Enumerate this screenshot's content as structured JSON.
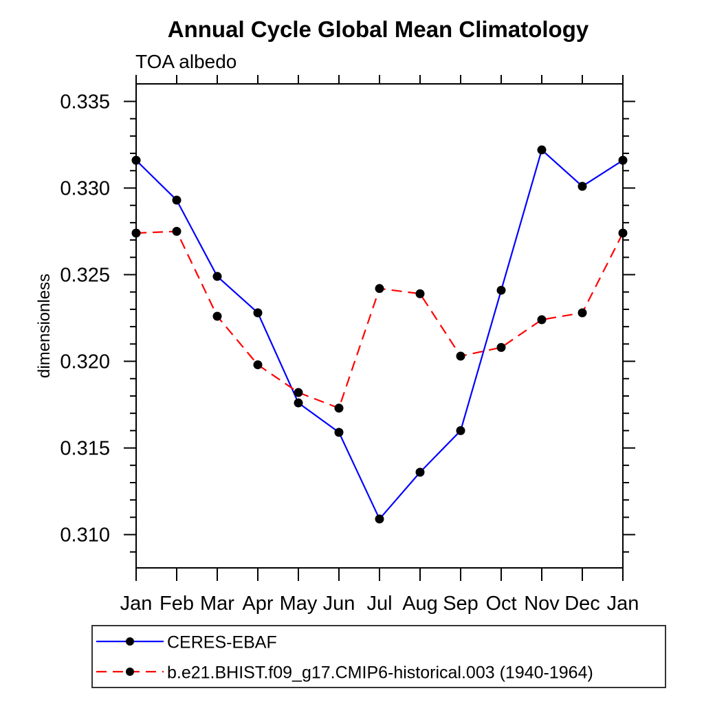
{
  "title": "Annual Cycle Global Mean Climatology",
  "subtitle": "TOA albedo",
  "ylabel": "dimensionless",
  "chart_data": {
    "type": "line",
    "categories": [
      "Jan",
      "Feb",
      "Mar",
      "Apr",
      "May",
      "Jun",
      "Jul",
      "Aug",
      "Sep",
      "Oct",
      "Nov",
      "Dec",
      "Jan"
    ],
    "series": [
      {
        "name": "CERES-EBAF",
        "color": "#0000ff",
        "line_style": "solid",
        "marker": "circle",
        "marker_color": "#000000",
        "values": [
          0.3316,
          0.3293,
          0.3249,
          0.3228,
          0.3176,
          0.3159,
          0.3109,
          0.3136,
          0.316,
          0.3241,
          0.3322,
          0.3301,
          0.3316
        ]
      },
      {
        "name": "b.e21.BHIST.f09_g17.CMIP6-historical.003 (1940-1964)",
        "color": "#ff0000",
        "line_style": "dashed",
        "marker": "circle",
        "marker_color": "#000000",
        "values": [
          0.3274,
          0.3275,
          0.3226,
          0.3198,
          0.3182,
          0.3173,
          0.3242,
          0.3239,
          0.3203,
          0.3208,
          0.3224,
          0.3228,
          0.3274
        ]
      }
    ],
    "ylim": [
      0.30808,
      0.33601
    ],
    "yticks_major": [
      0.31,
      0.315,
      0.32,
      0.325,
      0.33,
      0.335
    ],
    "ytick_labels": [
      "0.310",
      "0.315",
      "0.320",
      "0.325",
      "0.330",
      "0.335"
    ],
    "yticks_minor_step": 0.001,
    "grid": false,
    "legend_position": "bottom-left",
    "frame_color": "#000000"
  }
}
